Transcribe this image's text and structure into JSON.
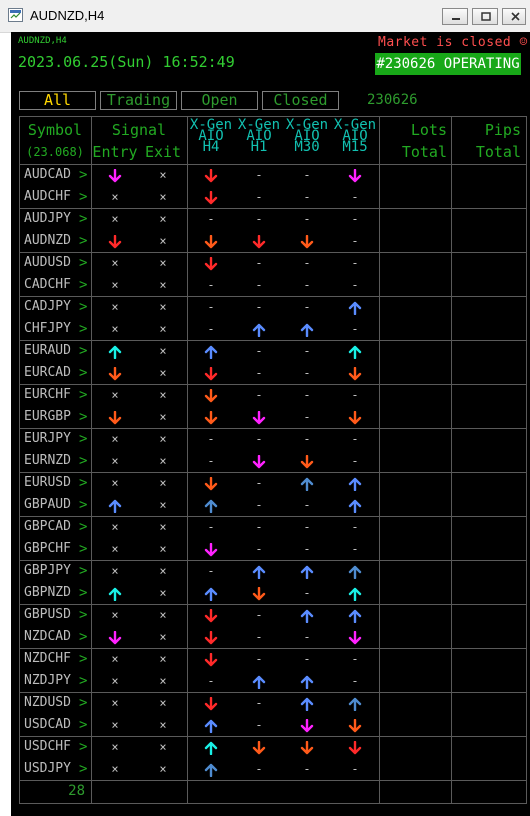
{
  "window": {
    "title": "AUDNZD,H4"
  },
  "panel": {
    "symbol_tag": "AUDNZD,H4",
    "datetime": "2023.06.25(Sun) 16:52:49",
    "market_status": "Market is closed ☺",
    "operating_badge": "#230626 OPERATING",
    "tabs": [
      "All",
      "Trading",
      "Open",
      "Closed"
    ],
    "active_tab": "All",
    "tab_number": "230626"
  },
  "table": {
    "headers": {
      "symbol": "Symbol",
      "symbol_sub": "(23.068)",
      "signal": "Signal",
      "entry": "Entry",
      "exit": "Exit",
      "xgen": [
        [
          "X-Gen",
          "AIO",
          "H4"
        ],
        [
          "X-Gen",
          "AIO",
          "H1"
        ],
        [
          "X-Gen",
          "AIO",
          "M30"
        ],
        [
          "X-Gen",
          "AIO",
          "M15"
        ]
      ],
      "lots": [
        "Lots",
        "Total"
      ],
      "pips": [
        "Pips",
        "Total"
      ]
    },
    "rows": [
      {
        "pair": "AUDCAD",
        "cells": [
          "dn-magenta",
          "x",
          "dn-red",
          "-",
          "-",
          "dn-magenta"
        ]
      },
      {
        "pair": "AUDCHF",
        "cells": [
          "x",
          "x",
          "dn-red",
          "-",
          "-",
          "-"
        ]
      },
      {
        "pair": "AUDJPY",
        "cells": [
          "x",
          "x",
          "-",
          "-",
          "-",
          "-"
        ]
      },
      {
        "pair": "AUDNZD",
        "cells": [
          "dn-red",
          "x",
          "dn-orange",
          "dn-red",
          "dn-orange",
          "-"
        ]
      },
      {
        "pair": "AUDUSD",
        "cells": [
          "x",
          "x",
          "dn-red",
          "-",
          "-",
          "-"
        ]
      },
      {
        "pair": "CADCHF",
        "cells": [
          "x",
          "x",
          "-",
          "-",
          "-",
          "-"
        ]
      },
      {
        "pair": "CADJPY",
        "cells": [
          "x",
          "x",
          "-",
          "-",
          "-",
          "up-blue"
        ]
      },
      {
        "pair": "CHFJPY",
        "cells": [
          "x",
          "x",
          "-",
          "up-blue",
          "up-blue",
          "-"
        ]
      },
      {
        "pair": "EURAUD",
        "cells": [
          "up-cyan",
          "x",
          "up-blue",
          "-",
          "-",
          "up-cyan"
        ]
      },
      {
        "pair": "EURCAD",
        "cells": [
          "dn-orange",
          "x",
          "dn-red",
          "-",
          "-",
          "dn-orange"
        ]
      },
      {
        "pair": "EURCHF",
        "cells": [
          "x",
          "x",
          "dn-orange",
          "-",
          "-",
          "-"
        ]
      },
      {
        "pair": "EURGBP",
        "cells": [
          "dn-orange",
          "x",
          "dn-orange",
          "dn-magenta",
          "-",
          "dn-orange"
        ]
      },
      {
        "pair": "EURJPY",
        "cells": [
          "x",
          "x",
          "-",
          "-",
          "-",
          "-"
        ]
      },
      {
        "pair": "EURNZD",
        "cells": [
          "x",
          "x",
          "-",
          "dn-magenta",
          "dn-orange",
          "-"
        ]
      },
      {
        "pair": "EURUSD",
        "cells": [
          "x",
          "x",
          "dn-orange",
          "-",
          "up-steel",
          "up-blue"
        ]
      },
      {
        "pair": "GBPAUD",
        "cells": [
          "up-blue",
          "x",
          "up-steel",
          "-",
          "-",
          "up-blue"
        ]
      },
      {
        "pair": "GBPCAD",
        "cells": [
          "x",
          "x",
          "-",
          "-",
          "-",
          "-"
        ]
      },
      {
        "pair": "GBPCHF",
        "cells": [
          "x",
          "x",
          "dn-magenta",
          "-",
          "-",
          "-"
        ]
      },
      {
        "pair": "GBPJPY",
        "cells": [
          "x",
          "x",
          "-",
          "up-blue",
          "up-blue",
          "up-steel"
        ]
      },
      {
        "pair": "GBPNZD",
        "cells": [
          "up-cyan",
          "x",
          "up-blue",
          "dn-orange",
          "-",
          "up-cyan"
        ]
      },
      {
        "pair": "GBPUSD",
        "cells": [
          "x",
          "x",
          "dn-red",
          "-",
          "up-blue",
          "up-blue"
        ]
      },
      {
        "pair": "NZDCAD",
        "cells": [
          "dn-magenta",
          "x",
          "dn-red",
          "-",
          "-",
          "dn-magenta"
        ]
      },
      {
        "pair": "NZDCHF",
        "cells": [
          "x",
          "x",
          "dn-red",
          "-",
          "-",
          "-"
        ]
      },
      {
        "pair": "NZDJPY",
        "cells": [
          "x",
          "x",
          "-",
          "up-blue",
          "up-blue",
          "-"
        ]
      },
      {
        "pair": "NZDUSD",
        "cells": [
          "x",
          "x",
          "dn-red",
          "-",
          "up-blue",
          "up-steel"
        ]
      },
      {
        "pair": "USDCAD",
        "cells": [
          "x",
          "x",
          "up-blue",
          "-",
          "dn-magenta",
          "dn-orange"
        ]
      },
      {
        "pair": "USDCHF",
        "cells": [
          "x",
          "x",
          "up-cyan",
          "dn-orange",
          "dn-orange",
          "dn-red"
        ]
      },
      {
        "pair": "USDJPY",
        "cells": [
          "x",
          "x",
          "up-steel",
          "-",
          "-",
          "-"
        ]
      }
    ],
    "footer_count": "28"
  },
  "colors": {
    "background": "#000000",
    "green_text": "#32cd32",
    "header_cyan": "#12c1b1",
    "tab_active": "#ffd700",
    "market_closed": "#ff4f4f",
    "badge_bg": "#18a818",
    "arrow_red": "#ff2a2a",
    "arrow_orange": "#ff5a1a",
    "arrow_magenta": "#ff22ff",
    "arrow_blue": "#5a8cff",
    "arrow_steel": "#4f8cd0",
    "arrow_cyan": "#19f0e6"
  }
}
